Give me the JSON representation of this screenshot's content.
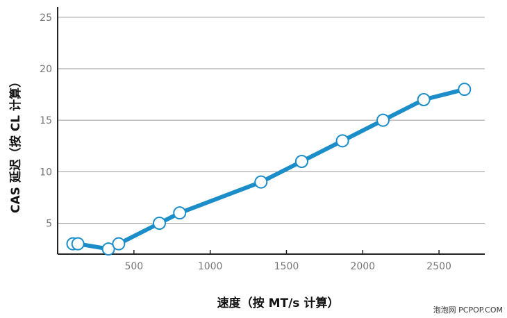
{
  "chart_data": {
    "type": "line",
    "xlabel": "速度（按 MT/s 计算）",
    "ylabel": "CAS 延迟（按 CL 计算）",
    "xlim": [
      0,
      2800
    ],
    "ylim": [
      2,
      26
    ],
    "xticks": [
      500,
      1000,
      1500,
      2000,
      2500
    ],
    "yticks": [
      5,
      10,
      15,
      20,
      25
    ],
    "grid": "horizontal",
    "series": [
      {
        "x": [
          100,
          133,
          333,
          400,
          667,
          800,
          1333,
          1600,
          1867,
          2133,
          2400,
          2667
        ],
        "y": [
          3,
          3,
          2.5,
          3,
          5,
          6,
          9,
          11,
          13,
          15,
          17,
          18
        ]
      }
    ]
  },
  "colors": {
    "line": "#1b8dc8",
    "grid": "#9a9a9a",
    "axis": "#222222"
  },
  "watermark": "泡泡网 PCPOP.COM"
}
